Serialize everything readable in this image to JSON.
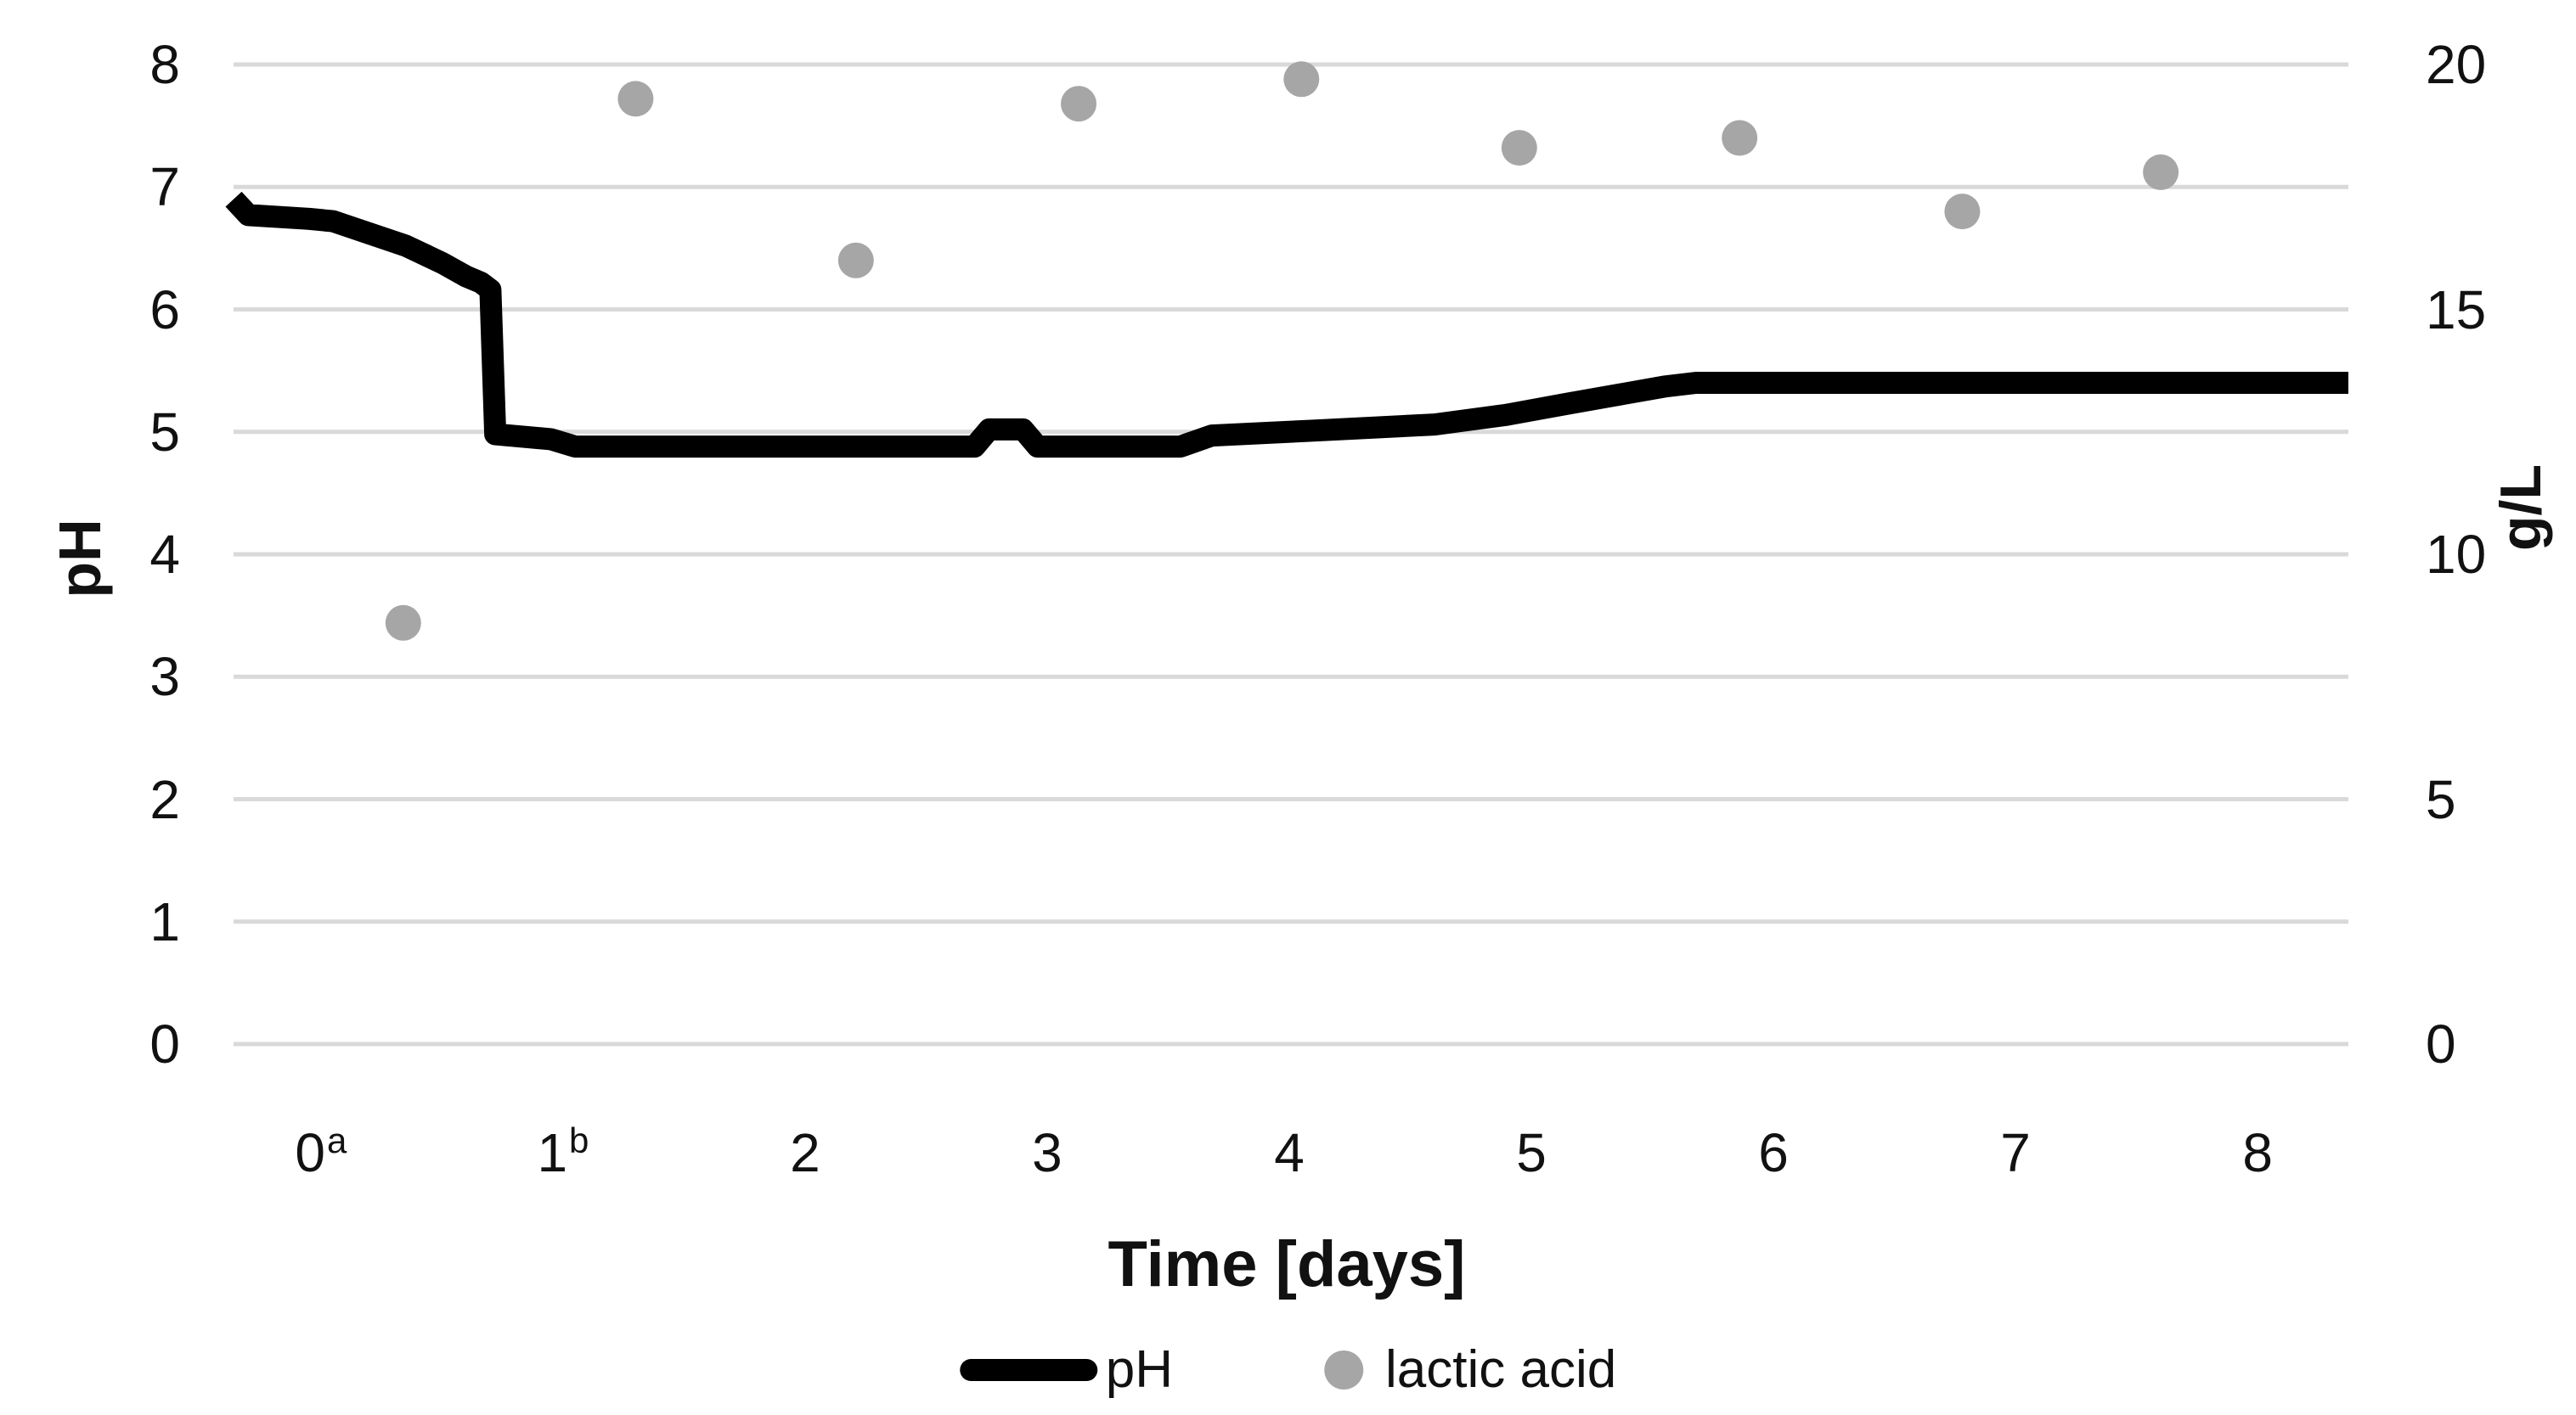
{
  "chart_data": {
    "type": "line",
    "subtype": "dual-axis line + scatter",
    "title": "",
    "xlabel": "Time [days]",
    "ylabel_left": "pH",
    "ylabel_right": "g/L",
    "x_range": [
      -0.361,
      8.375
    ],
    "y_left_range": [
      0,
      8
    ],
    "y_right_range": [
      0,
      20
    ],
    "grid": true,
    "gridline_color": "#d9d9d9",
    "x_ticks": [
      {
        "label": "0",
        "sup": "a",
        "day": 0
      },
      {
        "label": "1",
        "sup": "b",
        "day": 1
      },
      {
        "label": "2",
        "sup": "",
        "day": 2
      },
      {
        "label": "3",
        "sup": "",
        "day": 3
      },
      {
        "label": "4",
        "sup": "",
        "day": 4
      },
      {
        "label": "5",
        "sup": "",
        "day": 5
      },
      {
        "label": "6",
        "sup": "",
        "day": 6
      },
      {
        "label": "7",
        "sup": "",
        "day": 7
      },
      {
        "label": "8",
        "sup": "",
        "day": 8
      }
    ],
    "y_left_ticks": [
      "8",
      "7",
      "6",
      "5",
      "4",
      "3",
      "2",
      "1",
      "0"
    ],
    "y_left_tick_values": [
      8,
      7,
      6,
      5,
      4,
      3,
      2,
      1,
      0
    ],
    "y_right_ticks": [
      "20",
      "15",
      "10",
      "5",
      "0"
    ],
    "y_right_tick_values": [
      20,
      15,
      10,
      5,
      0
    ],
    "legend_position": "bottom",
    "series": [
      {
        "name": "pH",
        "axis": "left",
        "type": "line",
        "color": "#000000",
        "stroke_width": 26,
        "points": [
          [
            -0.361,
            6.9
          ],
          [
            -0.3,
            6.77
          ],
          [
            -0.05,
            6.74
          ],
          [
            0.05,
            6.72
          ],
          [
            0.35,
            6.52
          ],
          [
            0.5,
            6.38
          ],
          [
            0.6,
            6.27
          ],
          [
            0.66,
            6.22
          ],
          [
            0.7,
            6.16
          ],
          [
            0.72,
            4.98
          ],
          [
            0.95,
            4.94
          ],
          [
            1.05,
            4.88
          ],
          [
            2.7,
            4.88
          ],
          [
            2.76,
            5.02
          ],
          [
            2.9,
            5.02
          ],
          [
            2.96,
            4.88
          ],
          [
            3.55,
            4.88
          ],
          [
            3.68,
            4.97
          ],
          [
            4.1,
            5.01
          ],
          [
            4.6,
            5.06
          ],
          [
            4.9,
            5.14
          ],
          [
            5.15,
            5.23
          ],
          [
            5.38,
            5.31
          ],
          [
            5.55,
            5.37
          ],
          [
            5.68,
            5.4
          ],
          [
            8.375,
            5.4
          ]
        ]
      },
      {
        "name": "lactic acid",
        "axis": "right",
        "type": "scatter",
        "color": "#a6a6a6",
        "marker_radius": 21,
        "points": [
          [
            0.34,
            8.6
          ],
          [
            1.3,
            19.3
          ],
          [
            2.21,
            16.0
          ],
          [
            3.13,
            19.2
          ],
          [
            4.05,
            19.7
          ],
          [
            4.95,
            18.3
          ],
          [
            5.86,
            18.5
          ],
          [
            6.78,
            17.0
          ],
          [
            7.6,
            17.8
          ]
        ]
      }
    ]
  },
  "axes": {
    "x_title": "Time [days]",
    "left_title": "pH",
    "right_title": "g/L"
  },
  "legend": {
    "ph_label": "pH",
    "lactic_label": "lactic acid"
  },
  "colors": {
    "ph_line": "#000000",
    "lactic_dot": "#a6a6a6",
    "gridline": "#d9d9d9",
    "text": "#111111",
    "background": "#ffffff"
  }
}
